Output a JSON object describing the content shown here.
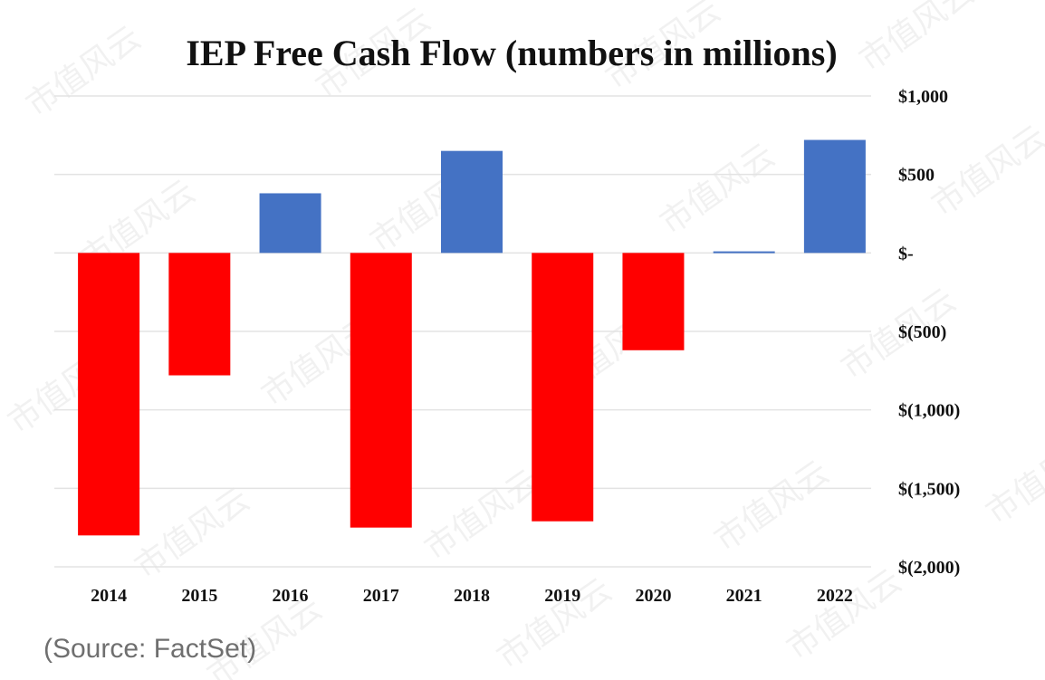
{
  "watermark_text": "市值风云",
  "source": "(Source: FactSet)",
  "chart_data": {
    "type": "bar",
    "title": "IEP Free Cash Flow (numbers in millions)",
    "xlabel": "",
    "ylabel": "",
    "categories": [
      "2014",
      "2015",
      "2016",
      "2017",
      "2018",
      "2019",
      "2020",
      "2021",
      "2022"
    ],
    "values": [
      -1800,
      -780,
      380,
      -1750,
      650,
      -1710,
      -620,
      10,
      720
    ],
    "ylim": [
      -2000,
      1000
    ],
    "yticks": [
      1000,
      500,
      0,
      -500,
      -1000,
      -1500,
      -2000
    ],
    "ytick_labels": [
      "$1,000",
      "$500",
      "$-",
      "$(500)",
      "$(1,000)",
      "$(1,500)",
      "$(2,000)"
    ],
    "grid": true,
    "legend": "none",
    "colors": {
      "positive": "#4472C4",
      "negative": "#FF0000"
    }
  }
}
